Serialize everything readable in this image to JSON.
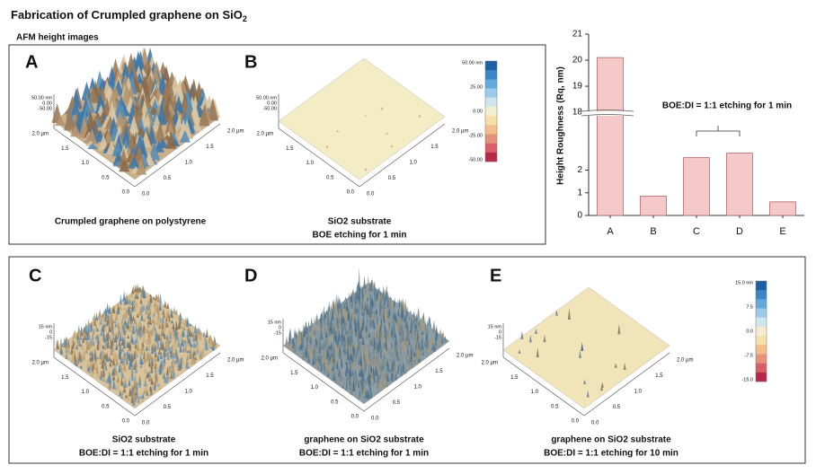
{
  "title": "Fabrication of Crumpled graphene on SiO",
  "title_subscript": "2",
  "section_label": "AFM height images",
  "panels": [
    {
      "letter": "A",
      "caption": "Crumpled graphene on polystyrene",
      "z_labels": [
        "50.00 nm",
        "0.00",
        "-50.00"
      ]
    },
    {
      "letter": "B",
      "caption": "SiO2 substrate",
      "note": "BOE etching for 1 min",
      "z_labels": [
        "50.00 nm",
        "0.00",
        "-50.00"
      ]
    },
    {
      "letter": "C",
      "caption": "SiO2 substrate",
      "note": "BOE:DI = 1:1 etching for 1 min",
      "z_labels": [
        "15 nm",
        "0",
        "-15"
      ]
    },
    {
      "letter": "D",
      "caption": "graphene on SiO2 substrate",
      "note": "BOE:DI = 1:1 etching for 1 min",
      "z_labels": [
        "15 nm",
        "0",
        "-15"
      ]
    },
    {
      "letter": "E",
      "caption": "graphene on SiO2 substrate",
      "note": "BOE:DI = 1:1 etching for 10 min",
      "z_labels": [
        "15 nm",
        "0",
        "-15"
      ]
    }
  ],
  "lateral_labels": [
    "2.0 µm",
    "1.5",
    "1.0",
    "0.5",
    "0.0"
  ],
  "color_scales": [
    {
      "labels": [
        "50.00 nm",
        "25.00",
        "0.00",
        "-25.00",
        "-50.00"
      ]
    },
    {
      "labels": [
        "15.0 nm",
        "7.5",
        "0.0",
        "-7.5",
        "-15.0"
      ]
    }
  ],
  "chart_data": {
    "type": "bar",
    "y_label": "Height Roughness (Rq, nm)",
    "categories": [
      "A",
      "B",
      "C",
      "D",
      "E"
    ],
    "values": [
      20.1,
      0.85,
      2.55,
      2.75,
      0.6
    ],
    "color": "#f6c9c9",
    "edge_color": "#b06060",
    "ylim_lower": [
      0,
      4.2
    ],
    "ylim_upper": [
      17.9,
      21
    ],
    "yticks": [
      0,
      1,
      2,
      18,
      19,
      20,
      21
    ],
    "annotation": "BOE:DI = 1:1 etching for 1 min"
  }
}
